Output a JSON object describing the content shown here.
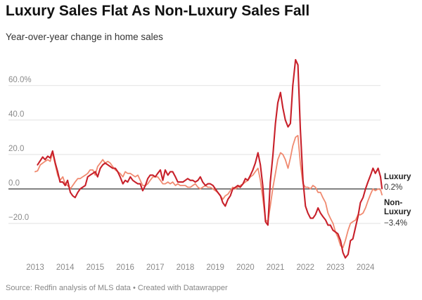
{
  "title": "Luxury Sales Flat As Non-Luxury Sales Fall",
  "subtitle": "Year-over-year change in home sales",
  "source": "Source: Redfin analysis of MLS data • Created with Datawrapper",
  "chart_data": {
    "type": "line",
    "title": "Luxury Sales Flat As Non-Luxury Sales Fall",
    "subtitle": "Year-over-year change in home sales",
    "xlabel": "",
    "ylabel": "",
    "xlim": [
      2013,
      2024.5
    ],
    "ylim": [
      -40,
      75
    ],
    "yticks": [
      {
        "value": 60,
        "label": "60.0%"
      },
      {
        "value": 40,
        "label": "40.0"
      },
      {
        "value": 20,
        "label": "20.0"
      },
      {
        "value": 0,
        "label": "0.0"
      },
      {
        "value": -20,
        "label": "−20.0"
      }
    ],
    "xticks": [
      {
        "value": 2013,
        "label": "2013"
      },
      {
        "value": 2014,
        "label": "2014"
      },
      {
        "value": 2015,
        "label": "2015"
      },
      {
        "value": 2016,
        "label": "2016"
      },
      {
        "value": 2017,
        "label": "2017"
      },
      {
        "value": 2018,
        "label": "2018"
      },
      {
        "value": 2019,
        "label": "2019"
      },
      {
        "value": 2020,
        "label": "2020"
      },
      {
        "value": 2021,
        "label": "2021"
      },
      {
        "value": 2022,
        "label": "2022"
      },
      {
        "value": 2023,
        "label": "2023"
      },
      {
        "value": 2024,
        "label": "2024"
      }
    ],
    "grid": true,
    "series": [
      {
        "name": "Luxury",
        "end_label": "0.2%",
        "color": "#c8202a",
        "points": [
          [
            2013.08,
            14
          ],
          [
            2013.25,
            18.5
          ],
          [
            2013.33,
            17
          ],
          [
            2013.42,
            19
          ],
          [
            2013.5,
            18
          ],
          [
            2013.58,
            22
          ],
          [
            2013.67,
            15
          ],
          [
            2013.75,
            10
          ],
          [
            2013.83,
            4
          ],
          [
            2013.92,
            4
          ],
          [
            2014.0,
            2
          ],
          [
            2014.08,
            5
          ],
          [
            2014.17,
            -2
          ],
          [
            2014.25,
            -4
          ],
          [
            2014.33,
            -5
          ],
          [
            2014.42,
            -2
          ],
          [
            2014.5,
            0
          ],
          [
            2014.58,
            1
          ],
          [
            2014.67,
            2
          ],
          [
            2014.75,
            7
          ],
          [
            2014.83,
            8
          ],
          [
            2014.92,
            9
          ],
          [
            2015.0,
            10
          ],
          [
            2015.08,
            7
          ],
          [
            2015.17,
            12
          ],
          [
            2015.25,
            14
          ],
          [
            2015.33,
            15
          ],
          [
            2015.42,
            14
          ],
          [
            2015.5,
            13
          ],
          [
            2015.58,
            12
          ],
          [
            2015.67,
            12
          ],
          [
            2015.75,
            10
          ],
          [
            2015.83,
            7
          ],
          [
            2015.92,
            3
          ],
          [
            2016.0,
            5
          ],
          [
            2016.08,
            4
          ],
          [
            2016.17,
            7
          ],
          [
            2016.25,
            5
          ],
          [
            2016.33,
            4
          ],
          [
            2016.42,
            3
          ],
          [
            2016.5,
            3
          ],
          [
            2016.58,
            -1
          ],
          [
            2016.67,
            2
          ],
          [
            2016.75,
            6
          ],
          [
            2016.83,
            8
          ],
          [
            2016.92,
            8
          ],
          [
            2017.0,
            7
          ],
          [
            2017.08,
            9
          ],
          [
            2017.17,
            11
          ],
          [
            2017.25,
            5
          ],
          [
            2017.33,
            11
          ],
          [
            2017.42,
            8
          ],
          [
            2017.5,
            10
          ],
          [
            2017.58,
            10
          ],
          [
            2017.67,
            7
          ],
          [
            2017.75,
            4
          ],
          [
            2017.83,
            4
          ],
          [
            2017.92,
            4
          ],
          [
            2018.0,
            5
          ],
          [
            2018.08,
            6
          ],
          [
            2018.17,
            5
          ],
          [
            2018.25,
            5
          ],
          [
            2018.33,
            4
          ],
          [
            2018.42,
            5
          ],
          [
            2018.5,
            7
          ],
          [
            2018.58,
            4
          ],
          [
            2018.67,
            2
          ],
          [
            2018.75,
            3
          ],
          [
            2018.83,
            3
          ],
          [
            2018.92,
            2
          ],
          [
            2019.0,
            0
          ],
          [
            2019.08,
            -2
          ],
          [
            2019.17,
            -4
          ],
          [
            2019.25,
            -8
          ],
          [
            2019.33,
            -10
          ],
          [
            2019.42,
            -6
          ],
          [
            2019.5,
            -4
          ],
          [
            2019.58,
            0
          ],
          [
            2019.67,
            1
          ],
          [
            2019.75,
            2
          ],
          [
            2019.83,
            1
          ],
          [
            2019.92,
            3
          ],
          [
            2020.0,
            6
          ],
          [
            2020.08,
            5
          ],
          [
            2020.17,
            8
          ],
          [
            2020.25,
            11
          ],
          [
            2020.33,
            15
          ],
          [
            2020.42,
            21
          ],
          [
            2020.5,
            14
          ],
          [
            2020.58,
            2
          ],
          [
            2020.67,
            -19
          ],
          [
            2020.75,
            -21
          ],
          [
            2020.83,
            4
          ],
          [
            2020.92,
            20
          ],
          [
            2021.0,
            38
          ],
          [
            2021.08,
            50
          ],
          [
            2021.17,
            56
          ],
          [
            2021.25,
            47
          ],
          [
            2021.33,
            40
          ],
          [
            2021.42,
            36
          ],
          [
            2021.5,
            38
          ],
          [
            2021.58,
            60
          ],
          [
            2021.67,
            75
          ],
          [
            2021.75,
            72
          ],
          [
            2021.83,
            35
          ],
          [
            2021.92,
            5
          ],
          [
            2022.0,
            -10
          ],
          [
            2022.08,
            -14
          ],
          [
            2022.17,
            -17
          ],
          [
            2022.25,
            -17
          ],
          [
            2022.33,
            -15
          ],
          [
            2022.42,
            -11
          ],
          [
            2022.5,
            -14
          ],
          [
            2022.58,
            -16
          ],
          [
            2022.67,
            -18
          ],
          [
            2022.75,
            -21
          ],
          [
            2022.83,
            -21
          ],
          [
            2022.92,
            -24
          ],
          [
            2023.0,
            -25
          ],
          [
            2023.08,
            -26
          ],
          [
            2023.17,
            -30
          ],
          [
            2023.25,
            -37
          ],
          [
            2023.33,
            -40
          ],
          [
            2023.42,
            -38
          ],
          [
            2023.5,
            -30
          ],
          [
            2023.58,
            -29
          ],
          [
            2023.67,
            -22
          ],
          [
            2023.75,
            -16
          ],
          [
            2023.83,
            -8
          ],
          [
            2023.92,
            -5
          ],
          [
            2024.0,
            0
          ],
          [
            2024.08,
            4
          ],
          [
            2024.17,
            8
          ],
          [
            2024.25,
            12
          ],
          [
            2024.33,
            9
          ],
          [
            2024.42,
            12
          ],
          [
            2024.5,
            7
          ],
          [
            2024.55,
            0.2
          ]
        ]
      },
      {
        "name": "Non-Luxury",
        "end_label": "−3.4%",
        "color": "#f08a70",
        "points": [
          [
            2013.0,
            10
          ],
          [
            2013.08,
            10.5
          ],
          [
            2013.17,
            14
          ],
          [
            2013.25,
            15
          ],
          [
            2013.33,
            16
          ],
          [
            2013.42,
            17
          ],
          [
            2013.5,
            16
          ],
          [
            2013.58,
            21
          ],
          [
            2013.67,
            14
          ],
          [
            2013.75,
            8
          ],
          [
            2013.83,
            5
          ],
          [
            2013.92,
            7
          ],
          [
            2014.0,
            3
          ],
          [
            2014.08,
            2
          ],
          [
            2014.17,
            0
          ],
          [
            2014.25,
            2
          ],
          [
            2014.33,
            4
          ],
          [
            2014.42,
            6
          ],
          [
            2014.5,
            6
          ],
          [
            2014.58,
            7
          ],
          [
            2014.67,
            8
          ],
          [
            2014.75,
            9
          ],
          [
            2014.83,
            11
          ],
          [
            2014.92,
            11
          ],
          [
            2015.0,
            8
          ],
          [
            2015.08,
            13
          ],
          [
            2015.17,
            15
          ],
          [
            2015.25,
            17
          ],
          [
            2015.33,
            15
          ],
          [
            2015.42,
            16
          ],
          [
            2015.5,
            15
          ],
          [
            2015.58,
            13
          ],
          [
            2015.67,
            11
          ],
          [
            2015.75,
            10
          ],
          [
            2015.83,
            9
          ],
          [
            2015.92,
            7
          ],
          [
            2016.0,
            10
          ],
          [
            2016.08,
            9
          ],
          [
            2016.17,
            9
          ],
          [
            2016.25,
            8
          ],
          [
            2016.33,
            7
          ],
          [
            2016.42,
            8
          ],
          [
            2016.5,
            5
          ],
          [
            2016.58,
            2
          ],
          [
            2016.67,
            2
          ],
          [
            2016.75,
            3
          ],
          [
            2016.83,
            5
          ],
          [
            2016.92,
            7
          ],
          [
            2017.0,
            7
          ],
          [
            2017.08,
            7
          ],
          [
            2017.17,
            5
          ],
          [
            2017.25,
            3
          ],
          [
            2017.33,
            3
          ],
          [
            2017.42,
            4
          ],
          [
            2017.5,
            3
          ],
          [
            2017.58,
            4
          ],
          [
            2017.67,
            2
          ],
          [
            2017.75,
            3
          ],
          [
            2017.83,
            2
          ],
          [
            2017.92,
            2
          ],
          [
            2018.0,
            2
          ],
          [
            2018.08,
            1
          ],
          [
            2018.17,
            1
          ],
          [
            2018.25,
            2
          ],
          [
            2018.33,
            3
          ],
          [
            2018.42,
            1
          ],
          [
            2018.5,
            0
          ],
          [
            2018.58,
            1
          ],
          [
            2018.67,
            2
          ],
          [
            2018.75,
            1
          ],
          [
            2018.83,
            1
          ],
          [
            2018.92,
            0
          ],
          [
            2019.0,
            -1
          ],
          [
            2019.08,
            -2
          ],
          [
            2019.17,
            -4
          ],
          [
            2019.25,
            -6
          ],
          [
            2019.33,
            -4
          ],
          [
            2019.42,
            -3
          ],
          [
            2019.5,
            -1
          ],
          [
            2019.58,
            1
          ],
          [
            2019.67,
            0
          ],
          [
            2019.75,
            1
          ],
          [
            2019.83,
            2
          ],
          [
            2019.92,
            3
          ],
          [
            2020.0,
            4
          ],
          [
            2020.08,
            5
          ],
          [
            2020.17,
            7
          ],
          [
            2020.25,
            8
          ],
          [
            2020.33,
            10
          ],
          [
            2020.42,
            12
          ],
          [
            2020.5,
            5
          ],
          [
            2020.58,
            -5
          ],
          [
            2020.67,
            -18
          ],
          [
            2020.75,
            -19
          ],
          [
            2020.83,
            -10
          ],
          [
            2020.92,
            1
          ],
          [
            2021.0,
            9
          ],
          [
            2021.08,
            17
          ],
          [
            2021.17,
            21
          ],
          [
            2021.25,
            20
          ],
          [
            2021.33,
            17
          ],
          [
            2021.42,
            12
          ],
          [
            2021.5,
            18
          ],
          [
            2021.58,
            25
          ],
          [
            2021.67,
            30
          ],
          [
            2021.75,
            31
          ],
          [
            2021.83,
            15
          ],
          [
            2021.92,
            3
          ],
          [
            2022.0,
            1
          ],
          [
            2022.08,
            1
          ],
          [
            2022.17,
            0
          ],
          [
            2022.25,
            2
          ],
          [
            2022.33,
            1
          ],
          [
            2022.42,
            -2
          ],
          [
            2022.5,
            -2
          ],
          [
            2022.58,
            -5
          ],
          [
            2022.67,
            -8
          ],
          [
            2022.75,
            -14
          ],
          [
            2022.83,
            -17
          ],
          [
            2022.92,
            -20
          ],
          [
            2023.0,
            -25
          ],
          [
            2023.08,
            -28
          ],
          [
            2023.17,
            -33
          ],
          [
            2023.25,
            -34
          ],
          [
            2023.33,
            -30
          ],
          [
            2023.42,
            -24
          ],
          [
            2023.5,
            -20
          ],
          [
            2023.58,
            -19
          ],
          [
            2023.67,
            -18
          ],
          [
            2023.75,
            -15
          ],
          [
            2023.83,
            -15
          ],
          [
            2023.92,
            -14
          ],
          [
            2024.0,
            -11
          ],
          [
            2024.08,
            -7
          ],
          [
            2024.17,
            -3
          ],
          [
            2024.25,
            0
          ],
          [
            2024.33,
            -1
          ],
          [
            2024.42,
            0
          ],
          [
            2024.5,
            -0.5
          ],
          [
            2024.55,
            -3.4
          ]
        ]
      }
    ]
  }
}
